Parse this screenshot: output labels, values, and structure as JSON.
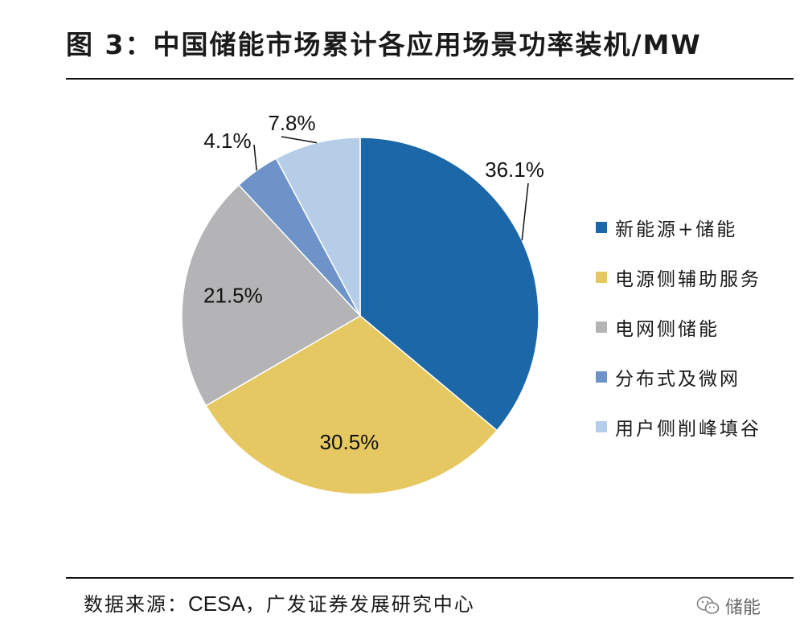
{
  "title": "图 3：中国储能市场累计各应用场景功率装机/MW",
  "chart_data": {
    "type": "pie",
    "slices": [
      {
        "name": "新能源+储能",
        "value": 36.1,
        "label": "36.1%",
        "color": "#1b67a7"
      },
      {
        "name": "电源侧辅助服务",
        "value": 30.5,
        "label": "30.5%",
        "color": "#e6c862"
      },
      {
        "name": "电网侧储能",
        "value": 21.5,
        "label": "21.5%",
        "color": "#b4b4b6"
      },
      {
        "name": "分布式及微网",
        "value": 4.1,
        "label": "4.1%",
        "color": "#6d93c8"
      },
      {
        "name": "用户侧削峰填谷",
        "value": 7.8,
        "label": "7.8%",
        "color": "#b6cde8"
      }
    ],
    "legend_position": "right"
  },
  "source": {
    "prefix": "数据来源：",
    "org": "CESA",
    "suffix": "，广发证券发展研究中心"
  },
  "watermark": {
    "text": "储能",
    "icon": "wechat-icon"
  }
}
